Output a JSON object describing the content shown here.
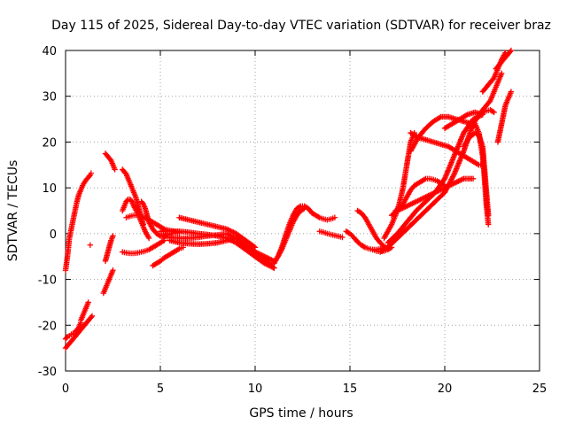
{
  "chart_data": {
    "type": "scatter",
    "title": "Day 115 of 2025, Sidereal Day-to-day VTEC variation (SDTVAR) for receiver braz",
    "xlabel": "GPS time / hours",
    "ylabel": "SDTVAR / TECUs",
    "xlim": [
      0,
      25
    ],
    "ylim": [
      -30,
      40
    ],
    "xticks": [
      "0",
      "5",
      "10",
      "15",
      "20",
      "25"
    ],
    "yticks": [
      "-30",
      "-20",
      "-10",
      "0",
      "10",
      "20",
      "30",
      "40"
    ],
    "grid": true,
    "marker": "+",
    "color": "#ff0000",
    "series": [
      {
        "x": [
          0.0,
          0.1,
          0.2,
          0.3,
          0.4,
          0.5,
          0.6,
          0.7,
          0.8,
          0.9,
          1.0,
          1.1,
          1.2,
          1.3,
          1.35
        ],
        "y": [
          -8,
          -5,
          -1,
          1,
          3,
          5,
          7,
          8.5,
          9.5,
          10.5,
          11.2,
          11.8,
          12.3,
          12.8,
          13.2
        ]
      },
      {
        "x": [
          0.0,
          0.1,
          0.2,
          0.3,
          0.4,
          0.5,
          0.6,
          0.7,
          0.8,
          0.9,
          1.0,
          1.1,
          1.2,
          1.3,
          1.4
        ],
        "y": [
          -25,
          -24.5,
          -24,
          -23.5,
          -23,
          -22.5,
          -22,
          -21.5,
          -21,
          -20.5,
          -20,
          -19.5,
          -19,
          -18.5,
          -18
        ]
      },
      {
        "x": [
          0.0,
          0.1,
          0.2,
          0.3,
          0.4,
          0.5,
          0.6,
          0.7,
          0.8
        ],
        "y": [
          -23,
          -22.5,
          -22.3,
          -22,
          -21.8,
          -21.5,
          -21,
          -20.5,
          -19.5
        ]
      },
      {
        "x": [
          0.8,
          0.9,
          1.0,
          1.1,
          1.2
        ],
        "y": [
          -19,
          -18,
          -17,
          -16,
          -15
        ]
      },
      {
        "x": [
          1.3
        ],
        "y": [
          -2.5
        ]
      },
      {
        "x": [
          2.0,
          2.1,
          2.2,
          2.3,
          2.4,
          2.5
        ],
        "y": [
          -13,
          -12,
          -11,
          -10,
          -9,
          -8
        ]
      },
      {
        "x": [
          2.1,
          2.2,
          2.3,
          2.4,
          2.5
        ],
        "y": [
          -6,
          -4.5,
          -3,
          -1.5,
          -0.5
        ]
      },
      {
        "x": [
          2.1,
          2.2,
          2.3,
          2.4,
          2.5,
          2.6
        ],
        "y": [
          17.5,
          17,
          16.5,
          16,
          15,
          14
        ]
      },
      {
        "x": [
          3.0,
          3.2,
          3.4,
          3.6,
          3.8,
          4.0,
          4.2,
          4.4,
          4.6,
          4.8,
          5.0,
          5.2
        ],
        "y": [
          -4,
          -4.2,
          -4.3,
          -4.3,
          -4.2,
          -4,
          -3.8,
          -3.5,
          -3,
          -2.5,
          -2,
          -1.5
        ]
      },
      {
        "x": [
          3.0,
          3.1,
          3.2,
          3.3,
          3.4,
          3.5,
          3.6,
          3.7,
          3.8,
          3.9,
          4.0,
          4.1
        ],
        "y": [
          14,
          13.5,
          13,
          12,
          11,
          10,
          9,
          8,
          6.5,
          5,
          3.5,
          2
        ]
      },
      {
        "x": [
          3.0,
          3.1,
          3.2,
          3.3,
          3.4,
          3.5,
          3.6,
          3.8,
          4.0,
          4.2,
          4.4
        ],
        "y": [
          5,
          6,
          7,
          7.5,
          7.5,
          7,
          6,
          4.5,
          2.5,
          0.5,
          -1
        ]
      },
      {
        "x": [
          3.2,
          3.4,
          3.6,
          3.8,
          4.0,
          4.2,
          4.4,
          4.6,
          4.8,
          5.0,
          5.2,
          5.4,
          5.6,
          5.8,
          6.0
        ],
        "y": [
          3.5,
          3.8,
          4,
          4,
          3.8,
          3.5,
          3,
          2.5,
          2,
          1.5,
          1,
          0.8,
          0.5,
          0.3,
          0.2
        ]
      },
      {
        "x": [
          4.0,
          4.1,
          4.2,
          4.3,
          4.4,
          4.6,
          4.8,
          5.0,
          5.2,
          5.4,
          5.6
        ],
        "y": [
          7,
          6.5,
          5.5,
          4,
          2.5,
          1,
          0,
          -0.5,
          -0.5,
          -0.3,
          0
        ]
      },
      {
        "x": [
          4.6,
          4.8,
          5.0,
          5.2,
          5.4,
          5.6,
          5.8,
          6.0,
          6.2
        ],
        "y": [
          -7,
          -6.5,
          -6,
          -5.3,
          -4.8,
          -4.3,
          -3.8,
          -3.3,
          -3
        ]
      },
      {
        "x": [
          5.0,
          5.5,
          6.0,
          6.5,
          7.0,
          7.5,
          8.0,
          8.5,
          9.0,
          9.5,
          10.0,
          10.5,
          11.0
        ],
        "y": [
          -0.5,
          -0.8,
          -1,
          -1,
          -0.8,
          -0.5,
          -0.3,
          0,
          -1,
          -2.5,
          -4,
          -5,
          -6
        ]
      },
      {
        "x": [
          5.0,
          5.5,
          6.0,
          6.5,
          7.0,
          7.5,
          8.0,
          8.5,
          9.0,
          9.5,
          10.0,
          10.5,
          11.0
        ],
        "y": [
          0.5,
          0.6,
          0.5,
          0.3,
          0,
          -0.2,
          -0.5,
          -1,
          -2,
          -3.5,
          -5,
          -6.5,
          -7.5
        ]
      },
      {
        "x": [
          6.0,
          6.5,
          7.0,
          7.5,
          8.0,
          8.5,
          9.0,
          9.5,
          10.0
        ],
        "y": [
          3.5,
          3,
          2.5,
          2,
          1.5,
          1,
          0,
          -1.5,
          -3
        ]
      },
      {
        "x": [
          5.5,
          6.0,
          6.5,
          7.0,
          7.5,
          8.0,
          8.5,
          9.0
        ],
        "y": [
          -1.5,
          -2,
          -2.2,
          -2.3,
          -2.2,
          -2,
          -1.5,
          -1
        ]
      },
      {
        "x": [
          9.0,
          9.5,
          10.0,
          10.5,
          11.0
        ],
        "y": [
          -2,
          -3,
          -4,
          -5.5,
          -7.5
        ]
      },
      {
        "x": [
          11.0,
          11.2,
          11.4,
          11.6,
          11.8,
          12.0,
          12.2,
          12.4,
          12.6,
          12.8,
          13.0
        ],
        "y": [
          -6.5,
          -5,
          -3,
          -0.5,
          2,
          4,
          5.5,
          6,
          6,
          5.5,
          4.5
        ]
      },
      {
        "x": [
          11.2,
          11.4,
          11.6,
          11.8,
          12.0,
          12.2,
          12.4,
          12.6
        ],
        "y": [
          -5,
          -3.5,
          -1.5,
          0.5,
          2.5,
          4,
          5,
          5.5
        ]
      },
      {
        "x": [
          13.0,
          13.2,
          13.4,
          13.6,
          13.8,
          14.0,
          14.2
        ],
        "y": [
          4.5,
          4,
          3.5,
          3.2,
          3,
          3.2,
          3.5
        ]
      },
      {
        "x": [
          13.4,
          13.6,
          13.8,
          14.0,
          14.2,
          14.4,
          14.6
        ],
        "y": [
          0.5,
          0.3,
          0,
          -0.2,
          -0.4,
          -0.6,
          -0.8
        ]
      },
      {
        "x": [
          14.8,
          15.0,
          15.2,
          15.4,
          15.6,
          15.8,
          16.0,
          16.2,
          16.4,
          16.6,
          16.8
        ],
        "y": [
          0.5,
          0,
          -0.8,
          -1.8,
          -2.5,
          -3,
          -3.3,
          -3.5,
          -3.5,
          -3.3,
          -3
        ]
      },
      {
        "x": [
          15.4,
          15.6,
          15.8,
          16.0,
          16.2,
          16.4,
          16.6,
          16.8,
          17.0
        ],
        "y": [
          5,
          4.5,
          3.5,
          2,
          0.5,
          -1,
          -2,
          -2.8,
          -3.2
        ]
      },
      {
        "x": [
          16.2,
          16.4,
          16.6,
          16.8,
          17.0,
          17.2
        ],
        "y": [
          -3.5,
          -3.8,
          -3.9,
          -3.8,
          -3.5,
          -3
        ]
      },
      {
        "x": [
          16.8,
          17.0,
          17.2,
          17.4,
          17.6,
          17.8,
          18.0,
          18.2,
          18.4
        ],
        "y": [
          -1,
          0.5,
          2,
          4,
          6.5,
          10,
          15,
          20,
          22
        ]
      },
      {
        "x": [
          17.4,
          17.6,
          17.8,
          18.0,
          18.2,
          18.4,
          18.6,
          18.8,
          19.0,
          19.2,
          19.4,
          19.6,
          19.8,
          20.0
        ],
        "y": [
          5,
          5.5,
          6.5,
          8,
          9.5,
          10.5,
          11,
          11.5,
          12,
          12,
          11.8,
          11.5,
          11,
          10.5
        ]
      },
      {
        "x": [
          17.2,
          17.5,
          18.0,
          18.5,
          19.0,
          19.5,
          20.0,
          20.5,
          21.0,
          21.5
        ],
        "y": [
          4,
          5,
          6,
          7,
          8,
          9,
          10,
          11,
          12,
          12
        ]
      },
      {
        "x": [
          18.2,
          18.6,
          19.0,
          19.4,
          19.8,
          20.2,
          20.6,
          21.0,
          21.4,
          21.8,
          22.0
        ],
        "y": [
          22,
          21,
          20.5,
          20,
          19.5,
          19,
          18,
          17,
          16,
          15,
          15
        ]
      },
      {
        "x": [
          18.2,
          18.6,
          19.0,
          19.4,
          19.8,
          20.2,
          20.6,
          21.0,
          21.4
        ],
        "y": [
          18,
          21,
          23,
          24.5,
          25.5,
          25.5,
          25,
          24.5,
          24
        ]
      },
      {
        "x": [
          16.6,
          17.0,
          17.5,
          18.0,
          18.5,
          19.0,
          19.5,
          20.0,
          20.5,
          21.0,
          21.5,
          22.0
        ],
        "y": [
          -4,
          -3,
          -1,
          1,
          3,
          5,
          7,
          9,
          13,
          18,
          24,
          27
        ]
      },
      {
        "x": [
          17.0,
          17.5,
          18.0,
          18.5,
          19.0,
          19.5,
          20.0,
          20.5,
          21.0,
          21.5,
          22.0
        ],
        "y": [
          -2,
          0,
          2.5,
          5,
          7,
          9,
          12,
          17,
          22,
          25,
          26
        ]
      },
      {
        "x": [
          20.0,
          20.4,
          20.8,
          21.2,
          21.6,
          22.0
        ],
        "y": [
          23,
          24,
          25,
          26,
          26.5,
          26
        ]
      },
      {
        "x": [
          21.0,
          21.3,
          21.6,
          21.8,
          22.0,
          22.1,
          22.2,
          22.3
        ],
        "y": [
          19,
          21,
          22,
          21.5,
          19,
          14,
          9,
          4
        ]
      },
      {
        "x": [
          21.4,
          21.6,
          21.8,
          22.0,
          22.1,
          22.2,
          22.3
        ],
        "y": [
          23,
          24,
          22,
          17,
          12,
          6,
          2
        ]
      },
      {
        "x": [
          21.4,
          21.6,
          21.8,
          22.0,
          22.2,
          22.4,
          22.6
        ],
        "y": [
          24,
          25,
          25.8,
          26.5,
          26.8,
          27,
          26.5
        ]
      },
      {
        "x": [
          22.0,
          22.2,
          22.4,
          22.6,
          22.8,
          23.0
        ],
        "y": [
          27,
          28,
          29,
          31,
          33,
          35
        ]
      },
      {
        "x": [
          22.8,
          23.0,
          23.2,
          23.4,
          23.5
        ],
        "y": [
          20,
          24,
          28,
          30,
          31
        ]
      },
      {
        "x": [
          22.0,
          22.2,
          22.4,
          22.6,
          22.8,
          23.0,
          23.2
        ],
        "y": [
          31,
          32,
          33,
          34,
          36,
          38,
          39.5
        ]
      },
      {
        "x": [
          22.7,
          22.9,
          23.1,
          23.3,
          23.5
        ],
        "y": [
          36,
          37,
          38,
          39,
          40
        ]
      }
    ]
  }
}
